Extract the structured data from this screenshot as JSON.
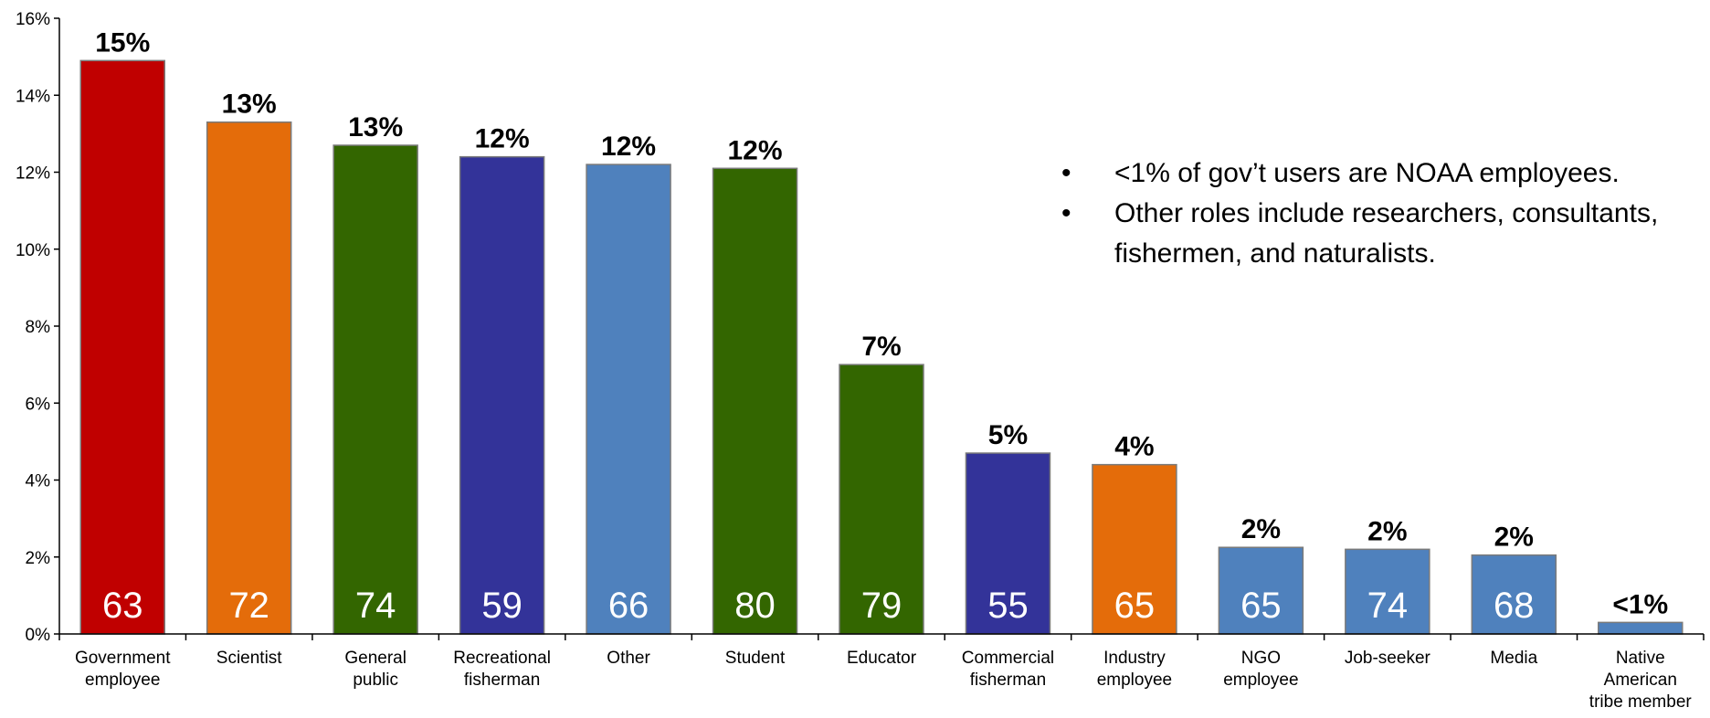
{
  "chart_data": {
    "type": "bar",
    "title": "",
    "xlabel": "",
    "ylabel": "",
    "ylim": [
      0,
      16
    ],
    "yticks": [
      "0%",
      "2%",
      "4%",
      "6%",
      "8%",
      "10%",
      "12%",
      "14%",
      "16%"
    ],
    "grid": false,
    "categories": [
      [
        "Government",
        "employee"
      ],
      [
        "Scientist"
      ],
      [
        "General",
        "public"
      ],
      [
        "Recreational",
        "fisherman"
      ],
      [
        "Other"
      ],
      [
        "Student"
      ],
      [
        "Educator"
      ],
      [
        "Commercial",
        "fisherman"
      ],
      [
        "Industry",
        "employee"
      ],
      [
        "NGO",
        "employee"
      ],
      [
        "Job-seeker"
      ],
      [
        "Media"
      ],
      [
        "Native",
        "American",
        "tribe member"
      ]
    ],
    "values": [
      14.9,
      13.3,
      12.7,
      12.4,
      12.2,
      12.1,
      7.0,
      4.7,
      4.4,
      2.25,
      2.2,
      2.05,
      0.3
    ],
    "value_labels": [
      "15%",
      "13%",
      "13%",
      "12%",
      "12%",
      "12%",
      "7%",
      "5%",
      "4%",
      "2%",
      "2%",
      "2%",
      "<1%"
    ],
    "counts": [
      "63",
      "72",
      "74",
      "59",
      "66",
      "80",
      "79",
      "55",
      "65",
      "65",
      "74",
      "68",
      ""
    ],
    "colors": [
      "#c00000",
      "#e46c0a",
      "#336600",
      "#333399",
      "#4f81bd",
      "#336600",
      "#336600",
      "#333399",
      "#e46c0a",
      "#4f81bd",
      "#4f81bd",
      "#4f81bd",
      "#4f81bd"
    ]
  },
  "notes": [
    "<1% of gov’t users are NOAA employees.",
    "Other roles include researchers, consultants, fishermen, and naturalists."
  ]
}
